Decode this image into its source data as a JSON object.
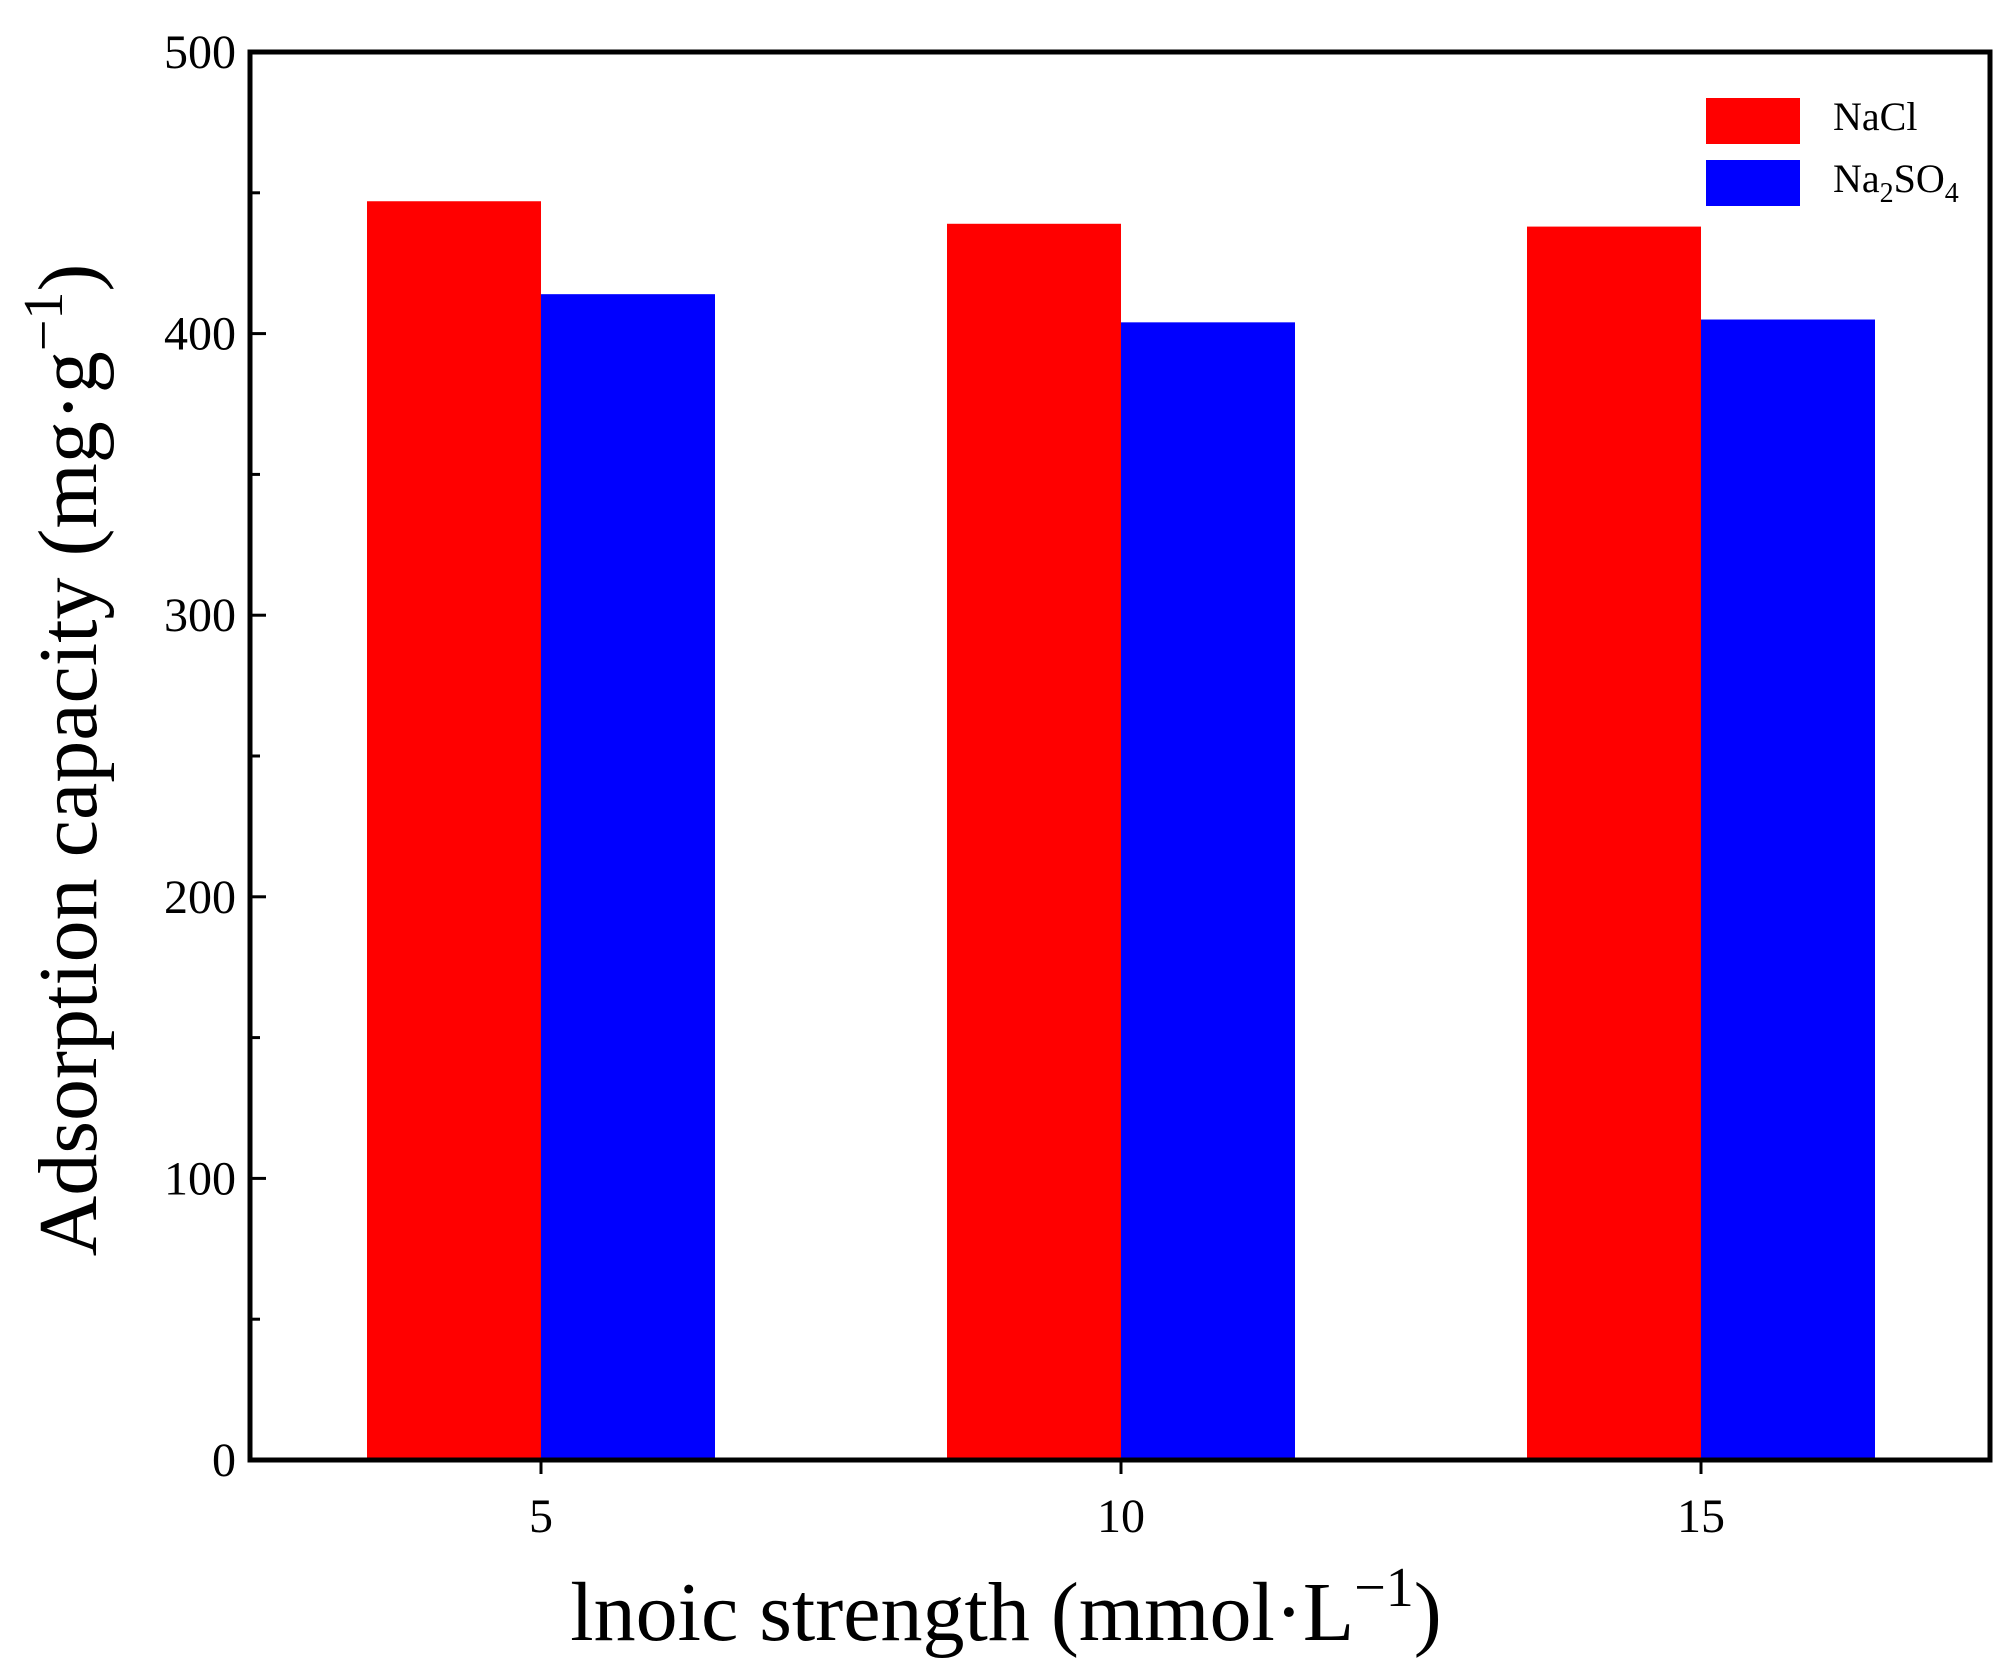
{
  "chart_data": {
    "type": "bar",
    "categories": [
      "5",
      "10",
      "15"
    ],
    "series": [
      {
        "name": "NaCl",
        "values": [
          447,
          439,
          438
        ],
        "color": "#ff0000"
      },
      {
        "name": "Na2SO4",
        "values": [
          414,
          404,
          405
        ],
        "color": "#0000ff"
      }
    ],
    "title": "",
    "xlabel": {
      "main": "lnoic strength (mmol·L",
      "sup": "−1",
      "close": ")"
    },
    "ylabel": {
      "main": "Adsorption capacity (mg·g",
      "sup": "−1",
      "close": ")"
    },
    "ylim": [
      0,
      500
    ],
    "yticks": [
      "0",
      "100",
      "200",
      "300",
      "400",
      "500"
    ],
    "grid": false,
    "legend": {
      "position": "top-right",
      "entries": [
        {
          "label": "NaCl",
          "color": "#ff0000"
        },
        {
          "label": "Na",
          "sub1": "2",
          "mid": "SO",
          "sub2": "4",
          "color": "#0000ff"
        }
      ]
    }
  }
}
